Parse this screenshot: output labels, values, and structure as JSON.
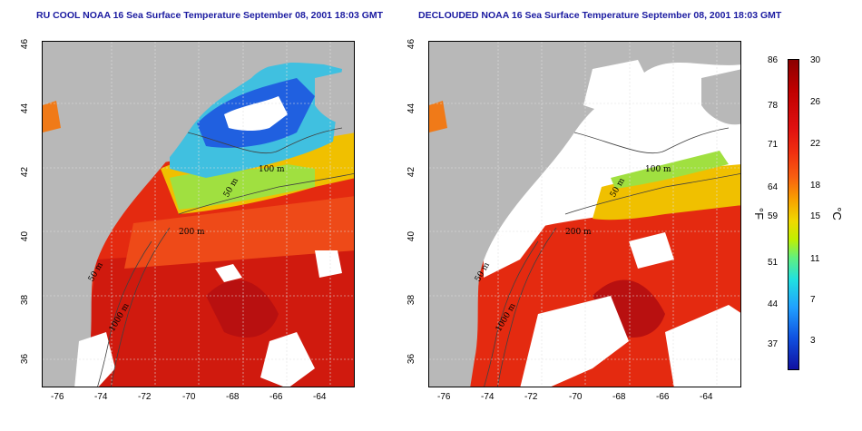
{
  "left_panel": {
    "title": "RU COOL NOAA 16 Sea Surface Temperature September 08, 2001 18:03 GMT"
  },
  "right_panel": {
    "title": "DECLOUDED NOAA 16 Sea Surface Temperature September 08, 2001 18:03 GMT"
  },
  "axes": {
    "x_ticks": [
      "-76",
      "-74",
      "-72",
      "-70",
      "-68",
      "-66",
      "-64"
    ],
    "y_ticks": [
      "46",
      "44",
      "42",
      "40",
      "38",
      "36"
    ]
  },
  "contour_labels": [
    "100 m",
    "50 m",
    "200 m",
    "1000 m",
    "50 m"
  ],
  "colorbar": {
    "f_ticks": [
      "86",
      "78",
      "71",
      "64",
      "59",
      "51",
      "44",
      "37"
    ],
    "c_ticks": [
      "30",
      "26",
      "22",
      "18",
      "15",
      "11",
      "7",
      "3"
    ],
    "f_unit": "°F",
    "c_unit": "°C"
  },
  "colors": {
    "land": "#b8b8b8",
    "cloud": "#ffffff",
    "warm": "#e42a10",
    "hot": "#c80c0c",
    "title": "#1a1aa0"
  }
}
